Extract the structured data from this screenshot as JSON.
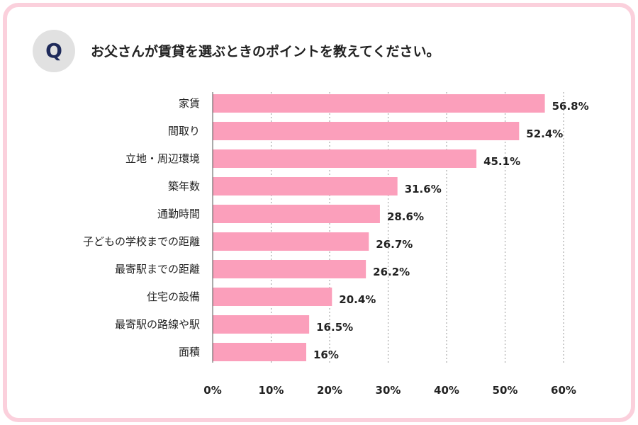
{
  "badge": "Q",
  "question": "お父さんが賃貸を選ぶときのポイントを教えてください。",
  "colors": {
    "bar": "#fb9fbb",
    "frame": "#fbd0dc",
    "badge_bg": "#e1e1e1",
    "badge_text": "#1e2a5a",
    "grid": "#9a9a9a"
  },
  "chart_data": {
    "type": "bar",
    "orientation": "horizontal",
    "title": "お父さんが賃貸を選ぶときのポイントを教えてください。",
    "categories": [
      "家賃",
      "間取り",
      "立地・周辺環境",
      "築年数",
      "通勤時間",
      "子どもの学校までの距離",
      "最寄駅までの距離",
      "住宅の設備",
      "最寄駅の路線や駅",
      "面積"
    ],
    "values": [
      56.8,
      52.4,
      45.1,
      31.6,
      28.6,
      26.7,
      26.2,
      20.4,
      16.5,
      16
    ],
    "value_labels": [
      "56.8%",
      "52.4%",
      "45.1%",
      "31.6%",
      "28.6%",
      "26.7%",
      "26.2%",
      "20.4%",
      "16.5%",
      "16%"
    ],
    "xlim": [
      0,
      60
    ],
    "ticks": [
      0,
      10,
      20,
      30,
      40,
      50,
      60
    ],
    "tick_labels": [
      "0%",
      "10%",
      "20%",
      "30%",
      "40%",
      "50%",
      "60%"
    ],
    "grid": true,
    "xlabel": "",
    "ylabel": ""
  }
}
